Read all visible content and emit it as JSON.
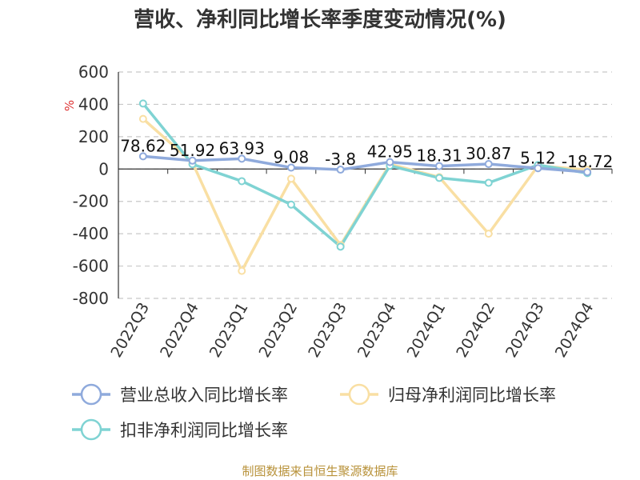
{
  "chart_data": {
    "type": "line",
    "title": "营收、净利同比增长率季度变动情况(%)",
    "ylabel": "%",
    "ylim": [
      -800,
      600
    ],
    "yticks": [
      600,
      400,
      200,
      0,
      -200,
      -400,
      -600,
      -800
    ],
    "grid": true,
    "legend_position": "bottom",
    "categories": [
      "2022Q3",
      "2022Q4",
      "2023Q1",
      "2023Q2",
      "2023Q3",
      "2023Q4",
      "2024Q1",
      "2024Q2",
      "2024Q3",
      "2024Q4"
    ],
    "series": [
      {
        "name": "营业总收入同比增长率",
        "color": "#8faadc",
        "values": [
          78.62,
          51.92,
          63.93,
          9.08,
          -3.8,
          42.95,
          18.31,
          30.87,
          5.12,
          -18.72
        ],
        "labels": [
          "78.62",
          "51.92",
          "63.93",
          "9.08",
          "-3.8",
          "42.95",
          "18.31",
          "30.87",
          "5.12",
          "-18.72"
        ]
      },
      {
        "name": "归母净利润同比增长率",
        "color": "#f9dfa3",
        "values": [
          310,
          40,
          -630,
          -60,
          -470,
          30,
          -50,
          -400,
          20,
          -5
        ]
      },
      {
        "name": "扣非净利润同比增长率",
        "color": "#7fd3d3",
        "values": [
          405,
          30,
          -75,
          -220,
          -480,
          20,
          -55,
          -85,
          25,
          -25
        ]
      }
    ]
  },
  "footer": "制图数据来自恒生聚源数据库"
}
